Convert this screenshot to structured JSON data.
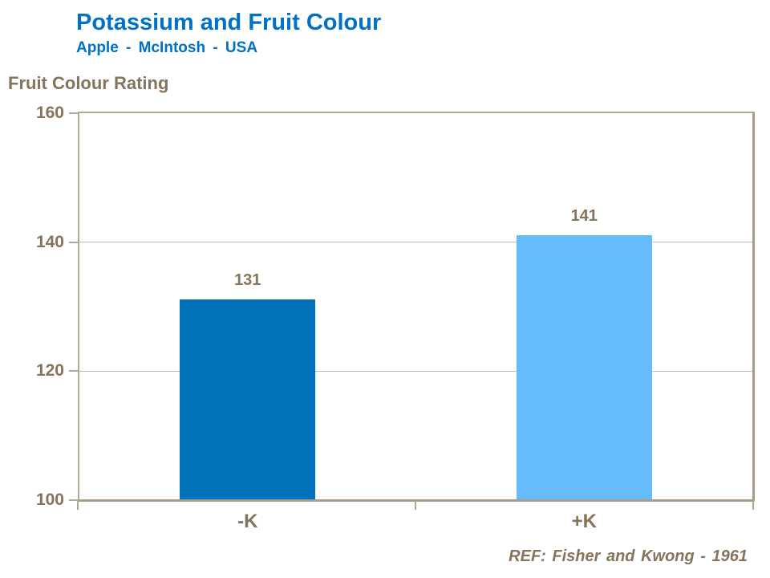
{
  "header": {
    "title": "Potassium and Fruit Colour",
    "subtitle": "Apple - McIntosh - USA"
  },
  "y_axis_title": "Fruit Colour Rating",
  "footer": {
    "ref": "REF: Fisher and Kwong - 1961"
  },
  "colors": {
    "title_blue": "#0071C5",
    "taupe_text": "#85735B",
    "axis_line": "#B2A896",
    "axis_line_dark": "#A89D8B",
    "gridline": "#C5BDAC"
  },
  "chart_data": {
    "type": "bar",
    "title": "Potassium and Fruit Colour",
    "subtitle": "Apple - McIntosh - USA",
    "ylabel": "Fruit Colour Rating",
    "xlabel": "",
    "categories": [
      "-K",
      "+K"
    ],
    "values": [
      131,
      141
    ],
    "data_labels_shown": true,
    "bar_colors": [
      "#0072BC",
      "#66BBFA"
    ],
    "ylim": [
      100,
      160
    ],
    "yticks": [
      100,
      120,
      140,
      160
    ],
    "grid": "horizontal",
    "legend": "none",
    "reference": "REF: Fisher and Kwong - 1961"
  }
}
